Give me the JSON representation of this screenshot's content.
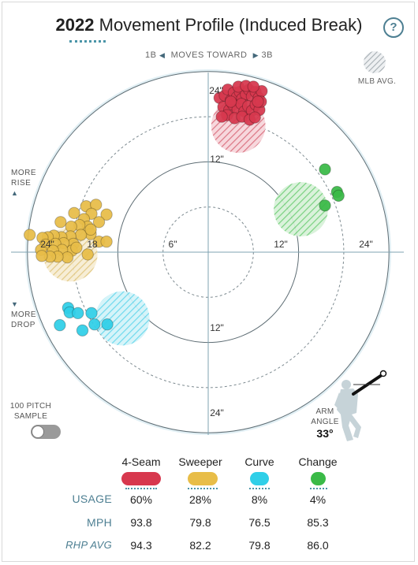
{
  "title": {
    "year": "2022",
    "text": "Movement Profile (Induced Break)"
  },
  "help_label": "?",
  "direction": {
    "left": "1B",
    "center": "MOVES TOWARD",
    "right": "3B"
  },
  "legend": {
    "mlb_avg": "MLB AVG."
  },
  "side_labels": {
    "rise_1": "MORE",
    "rise_2": "RISE",
    "drop_1": "MORE",
    "drop_2": "DROP"
  },
  "toggle": {
    "line1": "100 PITCH",
    "line2": "SAMPLE",
    "state": "off"
  },
  "arm_angle": {
    "line1": "ARM",
    "line2": "ANGLE",
    "value": "33°"
  },
  "colors": {
    "4-Seam": "#d7384e",
    "Sweeper": "#e8bd48",
    "Curve": "#2fcfe8",
    "Change": "#3aba47",
    "field": "#e1eff4",
    "ring": "#5e6d74",
    "dash": "#7d8a90",
    "axis": "#7fa3b2"
  },
  "chart_data": {
    "type": "scatter",
    "title": "2022 Movement Profile (Induced Break)",
    "xlim": [
      -24,
      24
    ],
    "ylim": [
      -24,
      24
    ],
    "rings": [
      6,
      12,
      18,
      24
    ],
    "x_ticks": [
      "24\"",
      "18",
      "6\"",
      "12\"",
      "24\""
    ],
    "y_ticks": [
      "24\"",
      "12\"",
      "12\"",
      "24\""
    ],
    "series": [
      {
        "name": "4-Seam",
        "color": "#d7384e",
        "avg": [
          4.0,
          16.8
        ],
        "avg_r": 3.6,
        "points": [
          [
            1.5,
            20.5
          ],
          [
            2.2,
            20.8
          ],
          [
            2.6,
            21.6
          ],
          [
            3.0,
            20.2
          ],
          [
            3.4,
            21.2
          ],
          [
            3.8,
            20.6
          ],
          [
            4.2,
            21.3
          ],
          [
            4.5,
            20.4
          ],
          [
            5.0,
            21.0
          ],
          [
            5.4,
            21.6
          ],
          [
            5.8,
            20.7
          ],
          [
            6.3,
            21.3
          ],
          [
            6.7,
            20.5
          ],
          [
            7.1,
            21.4
          ],
          [
            2.0,
            19.3
          ],
          [
            2.8,
            18.9
          ],
          [
            3.3,
            19.6
          ],
          [
            3.9,
            19.0
          ],
          [
            4.4,
            19.7
          ],
          [
            4.8,
            18.7
          ],
          [
            5.3,
            19.4
          ],
          [
            5.8,
            18.8
          ],
          [
            6.3,
            19.6
          ],
          [
            6.8,
            18.9
          ],
          [
            2.5,
            18.2
          ],
          [
            3.5,
            17.8
          ],
          [
            4.5,
            18.0
          ],
          [
            5.5,
            17.6
          ],
          [
            6.2,
            17.9
          ],
          [
            3.0,
            20.0
          ],
          [
            4.0,
            22.0
          ],
          [
            5.0,
            22.1
          ],
          [
            6.0,
            22.0
          ],
          [
            7.0,
            20.0
          ],
          [
            1.8,
            18.0
          ],
          [
            6.6,
            20.0
          ]
        ]
      },
      {
        "name": "Sweeper",
        "color": "#e8bd48",
        "avg": [
          -18.3,
          -0.3
        ],
        "avg_r": 3.6,
        "points": [
          [
            -16.2,
            6.1
          ],
          [
            -14.9,
            6.3
          ],
          [
            -15.5,
            5.1
          ],
          [
            -13.5,
            5.0
          ],
          [
            -17.8,
            5.2
          ],
          [
            -16.5,
            4.4
          ],
          [
            -14.5,
            4.0
          ],
          [
            -16.0,
            3.4
          ],
          [
            -17.1,
            3.6
          ],
          [
            -18.2,
            3.4
          ],
          [
            -19.6,
            4.0
          ],
          [
            -15.6,
            2.4
          ],
          [
            -16.9,
            2.3
          ],
          [
            -18.3,
            2.1
          ],
          [
            -19.5,
            2.0
          ],
          [
            -20.5,
            2.2
          ],
          [
            -21.3,
            2.0
          ],
          [
            -22.0,
            1.9
          ],
          [
            -23.7,
            2.3
          ],
          [
            -17.9,
            1.1
          ],
          [
            -19.2,
            1.2
          ],
          [
            -20.3,
            1.1
          ],
          [
            -21.6,
            1.0
          ],
          [
            -18.1,
            0.2
          ],
          [
            -19.4,
            0.3
          ],
          [
            -20.6,
            0.2
          ],
          [
            -22.2,
            0.3
          ],
          [
            -18.7,
            -0.7
          ],
          [
            -20.0,
            -0.6
          ],
          [
            -21.0,
            -0.6
          ],
          [
            -22.1,
            -0.5
          ],
          [
            -14.5,
            1.4
          ],
          [
            -15.6,
            3.0
          ],
          [
            -16.0,
            -0.3
          ],
          [
            -13.5,
            1.4
          ],
          [
            -17.5,
            0.6
          ]
        ]
      },
      {
        "name": "Curve",
        "color": "#2fcfe8",
        "avg": [
          -11.4,
          -8.8
        ],
        "avg_r": 3.6,
        "points": [
          [
            -18.6,
            -7.4
          ],
          [
            -18.4,
            -8.0
          ],
          [
            -17.3,
            -8.1
          ],
          [
            -15.5,
            -8.1
          ],
          [
            -19.7,
            -9.7
          ],
          [
            -15.1,
            -9.6
          ],
          [
            -13.4,
            -9.6
          ],
          [
            -16.7,
            -10.4
          ]
        ]
      },
      {
        "name": "Change",
        "color": "#3aba47",
        "avg": [
          12.3,
          5.7
        ],
        "avg_r": 3.6,
        "points": [
          [
            15.5,
            11.0
          ],
          [
            17.1,
            8.0
          ],
          [
            17.3,
            7.5
          ],
          [
            15.5,
            6.2
          ]
        ]
      }
    ]
  },
  "table": {
    "pitches": [
      {
        "name": "4-Seam",
        "color": "#d7384e",
        "usage": "60%",
        "mph": "93.8",
        "rhp_avg": "94.3"
      },
      {
        "name": "Sweeper",
        "color": "#e8bd48",
        "usage": "28%",
        "mph": "79.8",
        "rhp_avg": "82.2"
      },
      {
        "name": "Curve",
        "color": "#2fcfe8",
        "usage": "8%",
        "mph": "76.5",
        "rhp_avg": "79.8"
      },
      {
        "name": "Change",
        "color": "#3aba47",
        "usage": "4%",
        "mph": "85.3",
        "rhp_avg": "86.0"
      }
    ],
    "row_labels": {
      "usage": "USAGE",
      "mph": "MPH",
      "rhp_avg": "RHP AVG"
    }
  }
}
